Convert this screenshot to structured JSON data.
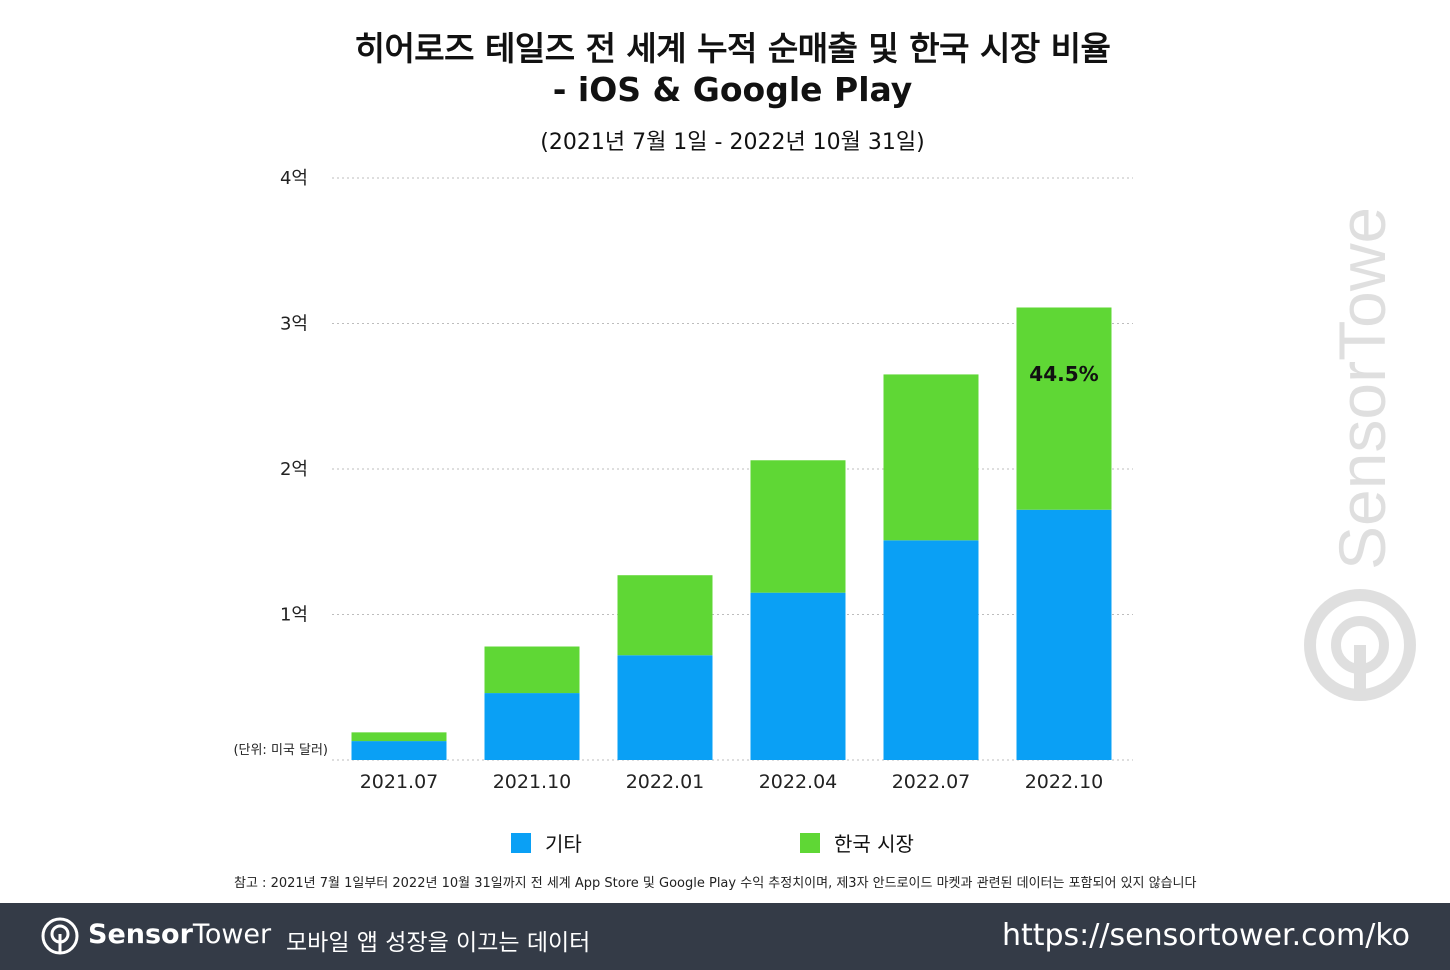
{
  "chart_data": {
    "type": "bar",
    "stacked": true,
    "title": "히어로즈 테일즈 전 세계 누적 순매출 및 한국 시장 비율",
    "title_line2": "- iOS & Google Play",
    "subtitle": "(2021년 7월 1일 - 2022년 10월 31일)",
    "categories": [
      "2021.07",
      "2021.10",
      "2022.01",
      "2022.04",
      "2022.07",
      "2022.10"
    ],
    "series": [
      {
        "name": "기타",
        "color": "#0aa0f5",
        "values": [
          0.13,
          0.46,
          0.72,
          1.15,
          1.51,
          1.72
        ]
      },
      {
        "name": "한국 시장",
        "color": "#5fd735",
        "values": [
          0.06,
          0.32,
          0.55,
          0.91,
          1.14,
          1.39
        ]
      }
    ],
    "ylim": [
      0,
      4
    ],
    "yticks": [
      {
        "value": 1,
        "label": "1억"
      },
      {
        "value": 2,
        "label": "2억"
      },
      {
        "value": 3,
        "label": "3억"
      },
      {
        "value": 4,
        "label": "4억"
      }
    ],
    "unit_label": "(단위: 미국 달러)",
    "annotation": {
      "category_index": 5,
      "text": "44.5%"
    },
    "grid": true,
    "legend_position": "bottom"
  },
  "note": "참고 : 2021년 7월 1일부터 2022년 10월 31일까지 전 세계 App Store 및 Google Play 수익 추정치이며, 제3자 안드로이드 마켓과 관련된 데이터는 포함되어 있지 않습니다",
  "footer": {
    "brand_bold": "Sensor",
    "brand_light": "Tower",
    "tagline": "모바일 앱 성장을 이끄는 데이터",
    "url": "https://sensortower.com/ko"
  },
  "watermark_text": "SensorTower"
}
